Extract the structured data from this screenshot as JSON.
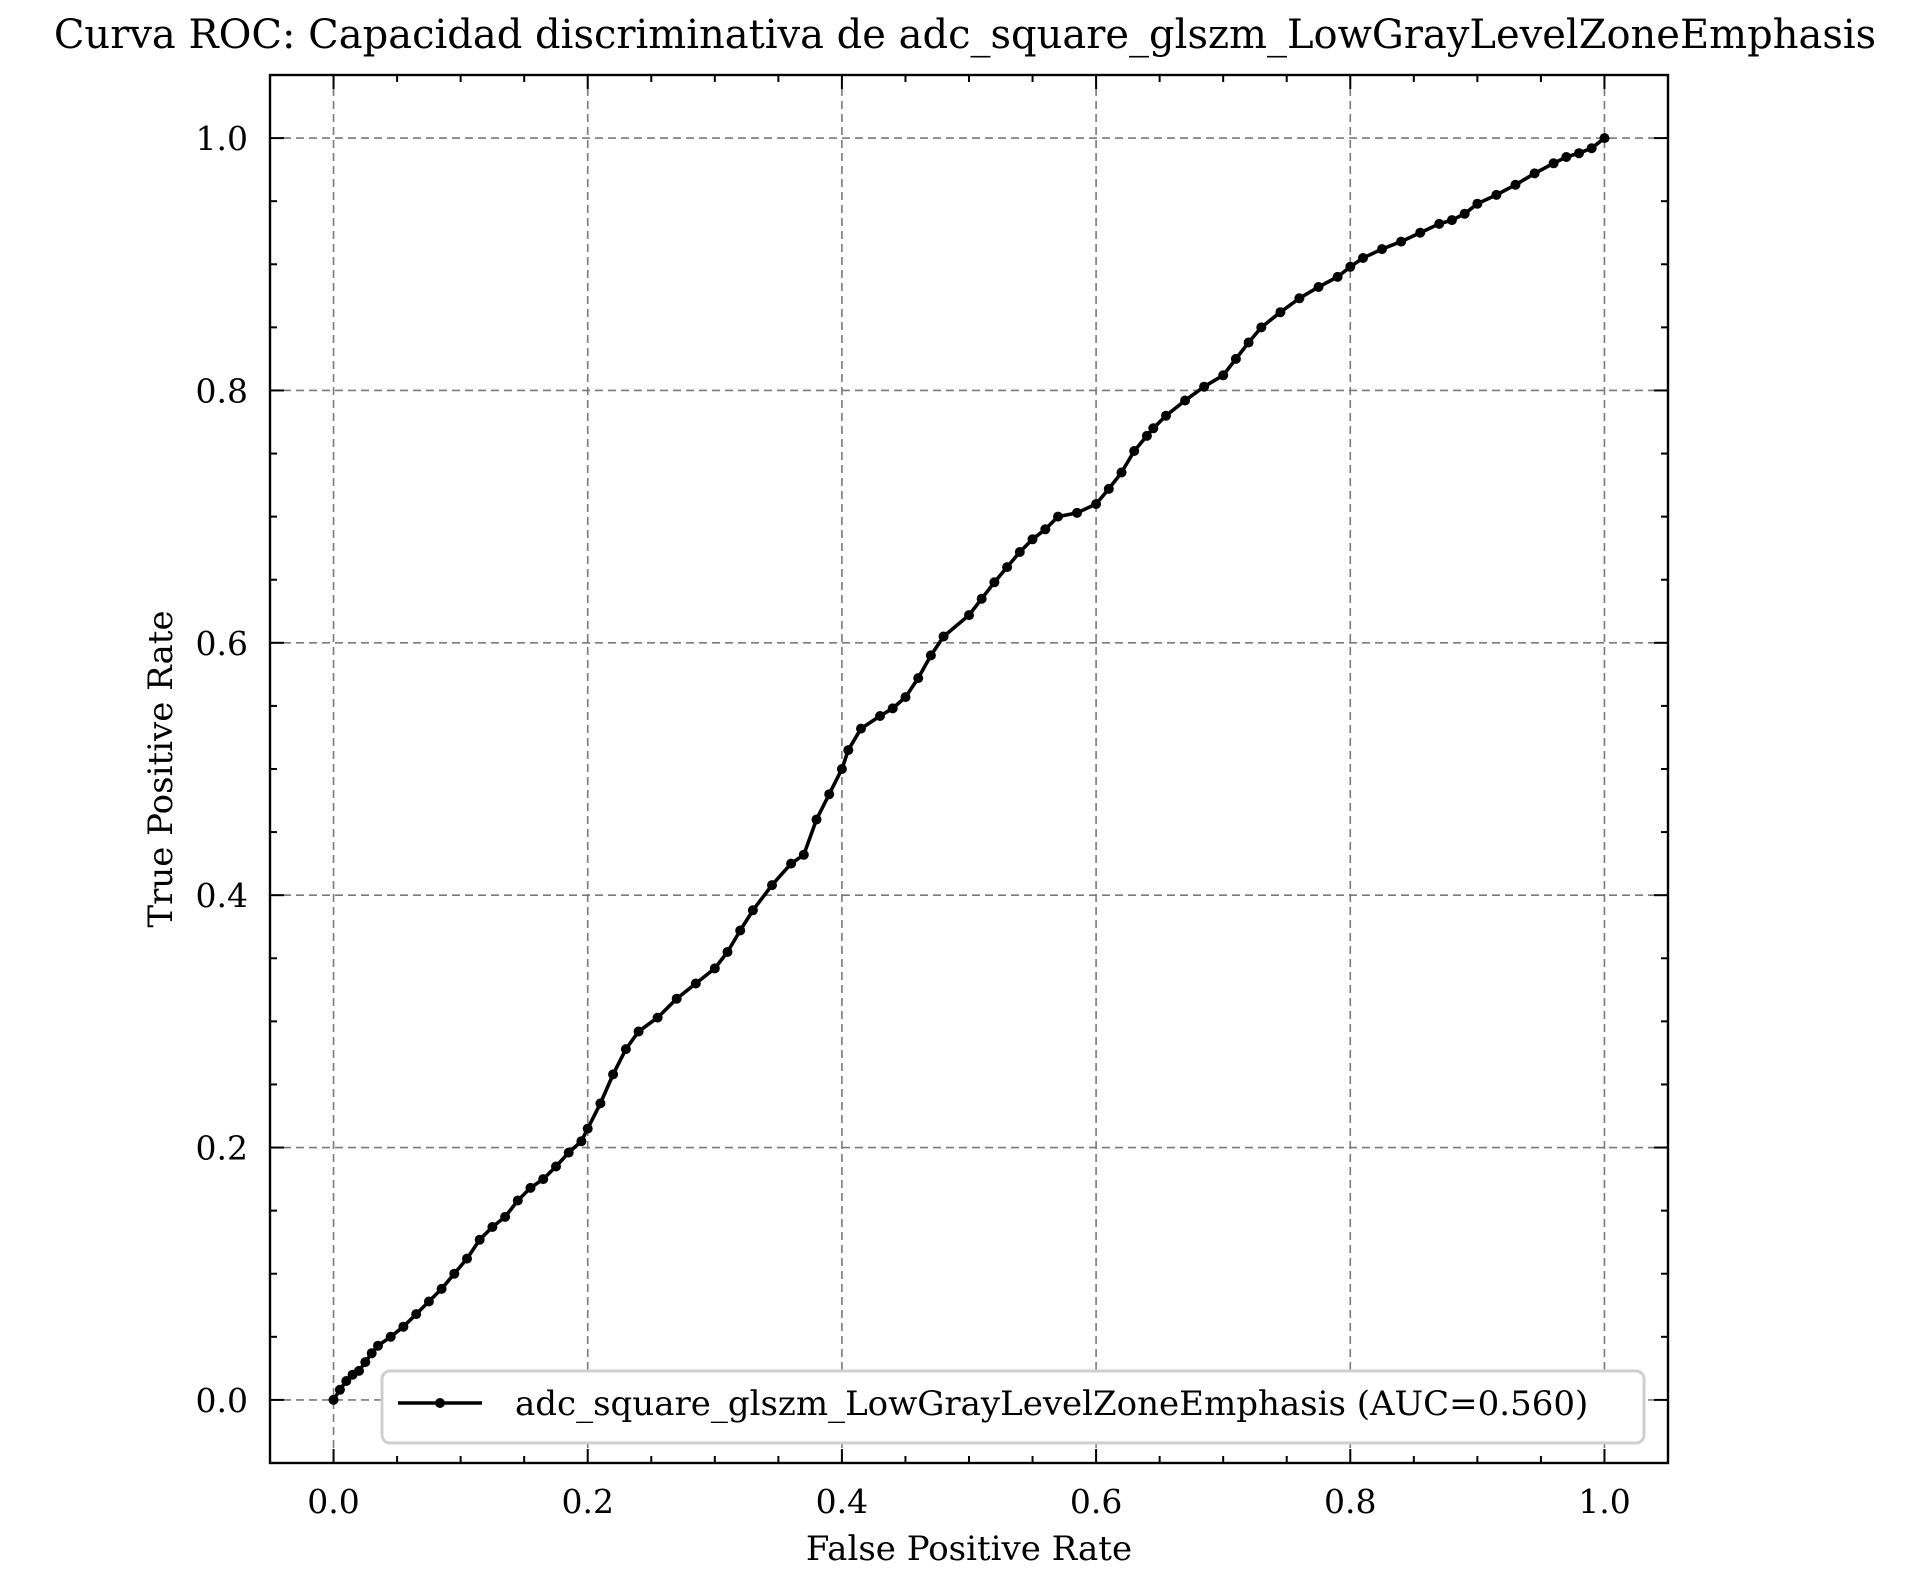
{
  "chart_data": {
    "type": "line",
    "title": "Curva ROC: Capacidad discriminativa de adc_square_glszm_LowGrayLevelZoneEmphasis",
    "xlabel": "False Positive Rate",
    "ylabel": "True Positive Rate",
    "xlim": [
      -0.05,
      1.05
    ],
    "ylim": [
      -0.05,
      1.05
    ],
    "xticks": [
      "0.0",
      "0.2",
      "0.4",
      "0.6",
      "0.8",
      "1.0"
    ],
    "yticks": [
      "0.0",
      "0.2",
      "0.4",
      "0.6",
      "0.8",
      "1.0"
    ],
    "grid": true,
    "legend_position": "lower-right",
    "series": [
      {
        "name": "adc_square_glszm_LowGrayLevelZoneEmphasis (AUC=0.560)",
        "color": "#000000",
        "marker": "dot",
        "x": [
          0.0,
          0.005,
          0.01,
          0.015,
          0.02,
          0.025,
          0.03,
          0.035,
          0.045,
          0.055,
          0.065,
          0.075,
          0.085,
          0.095,
          0.105,
          0.115,
          0.125,
          0.135,
          0.145,
          0.155,
          0.165,
          0.175,
          0.185,
          0.195,
          0.2,
          0.21,
          0.22,
          0.23,
          0.24,
          0.255,
          0.27,
          0.285,
          0.3,
          0.31,
          0.32,
          0.33,
          0.345,
          0.36,
          0.37,
          0.38,
          0.39,
          0.4,
          0.405,
          0.415,
          0.43,
          0.44,
          0.45,
          0.46,
          0.47,
          0.48,
          0.5,
          0.51,
          0.52,
          0.53,
          0.54,
          0.55,
          0.56,
          0.57,
          0.585,
          0.6,
          0.61,
          0.62,
          0.63,
          0.64,
          0.645,
          0.655,
          0.67,
          0.685,
          0.7,
          0.71,
          0.72,
          0.73,
          0.745,
          0.76,
          0.775,
          0.79,
          0.8,
          0.81,
          0.825,
          0.84,
          0.855,
          0.87,
          0.88,
          0.89,
          0.9,
          0.915,
          0.93,
          0.945,
          0.96,
          0.97,
          0.98,
          0.99,
          1.0
        ],
        "y": [
          0.0,
          0.008,
          0.015,
          0.02,
          0.023,
          0.03,
          0.037,
          0.043,
          0.05,
          0.058,
          0.068,
          0.078,
          0.088,
          0.1,
          0.112,
          0.127,
          0.137,
          0.145,
          0.158,
          0.168,
          0.175,
          0.185,
          0.196,
          0.205,
          0.215,
          0.235,
          0.258,
          0.278,
          0.292,
          0.303,
          0.318,
          0.33,
          0.342,
          0.355,
          0.372,
          0.388,
          0.408,
          0.425,
          0.432,
          0.46,
          0.48,
          0.5,
          0.515,
          0.532,
          0.542,
          0.548,
          0.557,
          0.572,
          0.59,
          0.605,
          0.622,
          0.635,
          0.648,
          0.66,
          0.672,
          0.682,
          0.69,
          0.7,
          0.703,
          0.71,
          0.722,
          0.735,
          0.752,
          0.764,
          0.77,
          0.78,
          0.792,
          0.803,
          0.812,
          0.825,
          0.838,
          0.85,
          0.862,
          0.873,
          0.882,
          0.89,
          0.898,
          0.905,
          0.912,
          0.918,
          0.925,
          0.932,
          0.935,
          0.94,
          0.948,
          0.955,
          0.963,
          0.972,
          0.98,
          0.985,
          0.988,
          0.992,
          1.0
        ]
      }
    ]
  }
}
